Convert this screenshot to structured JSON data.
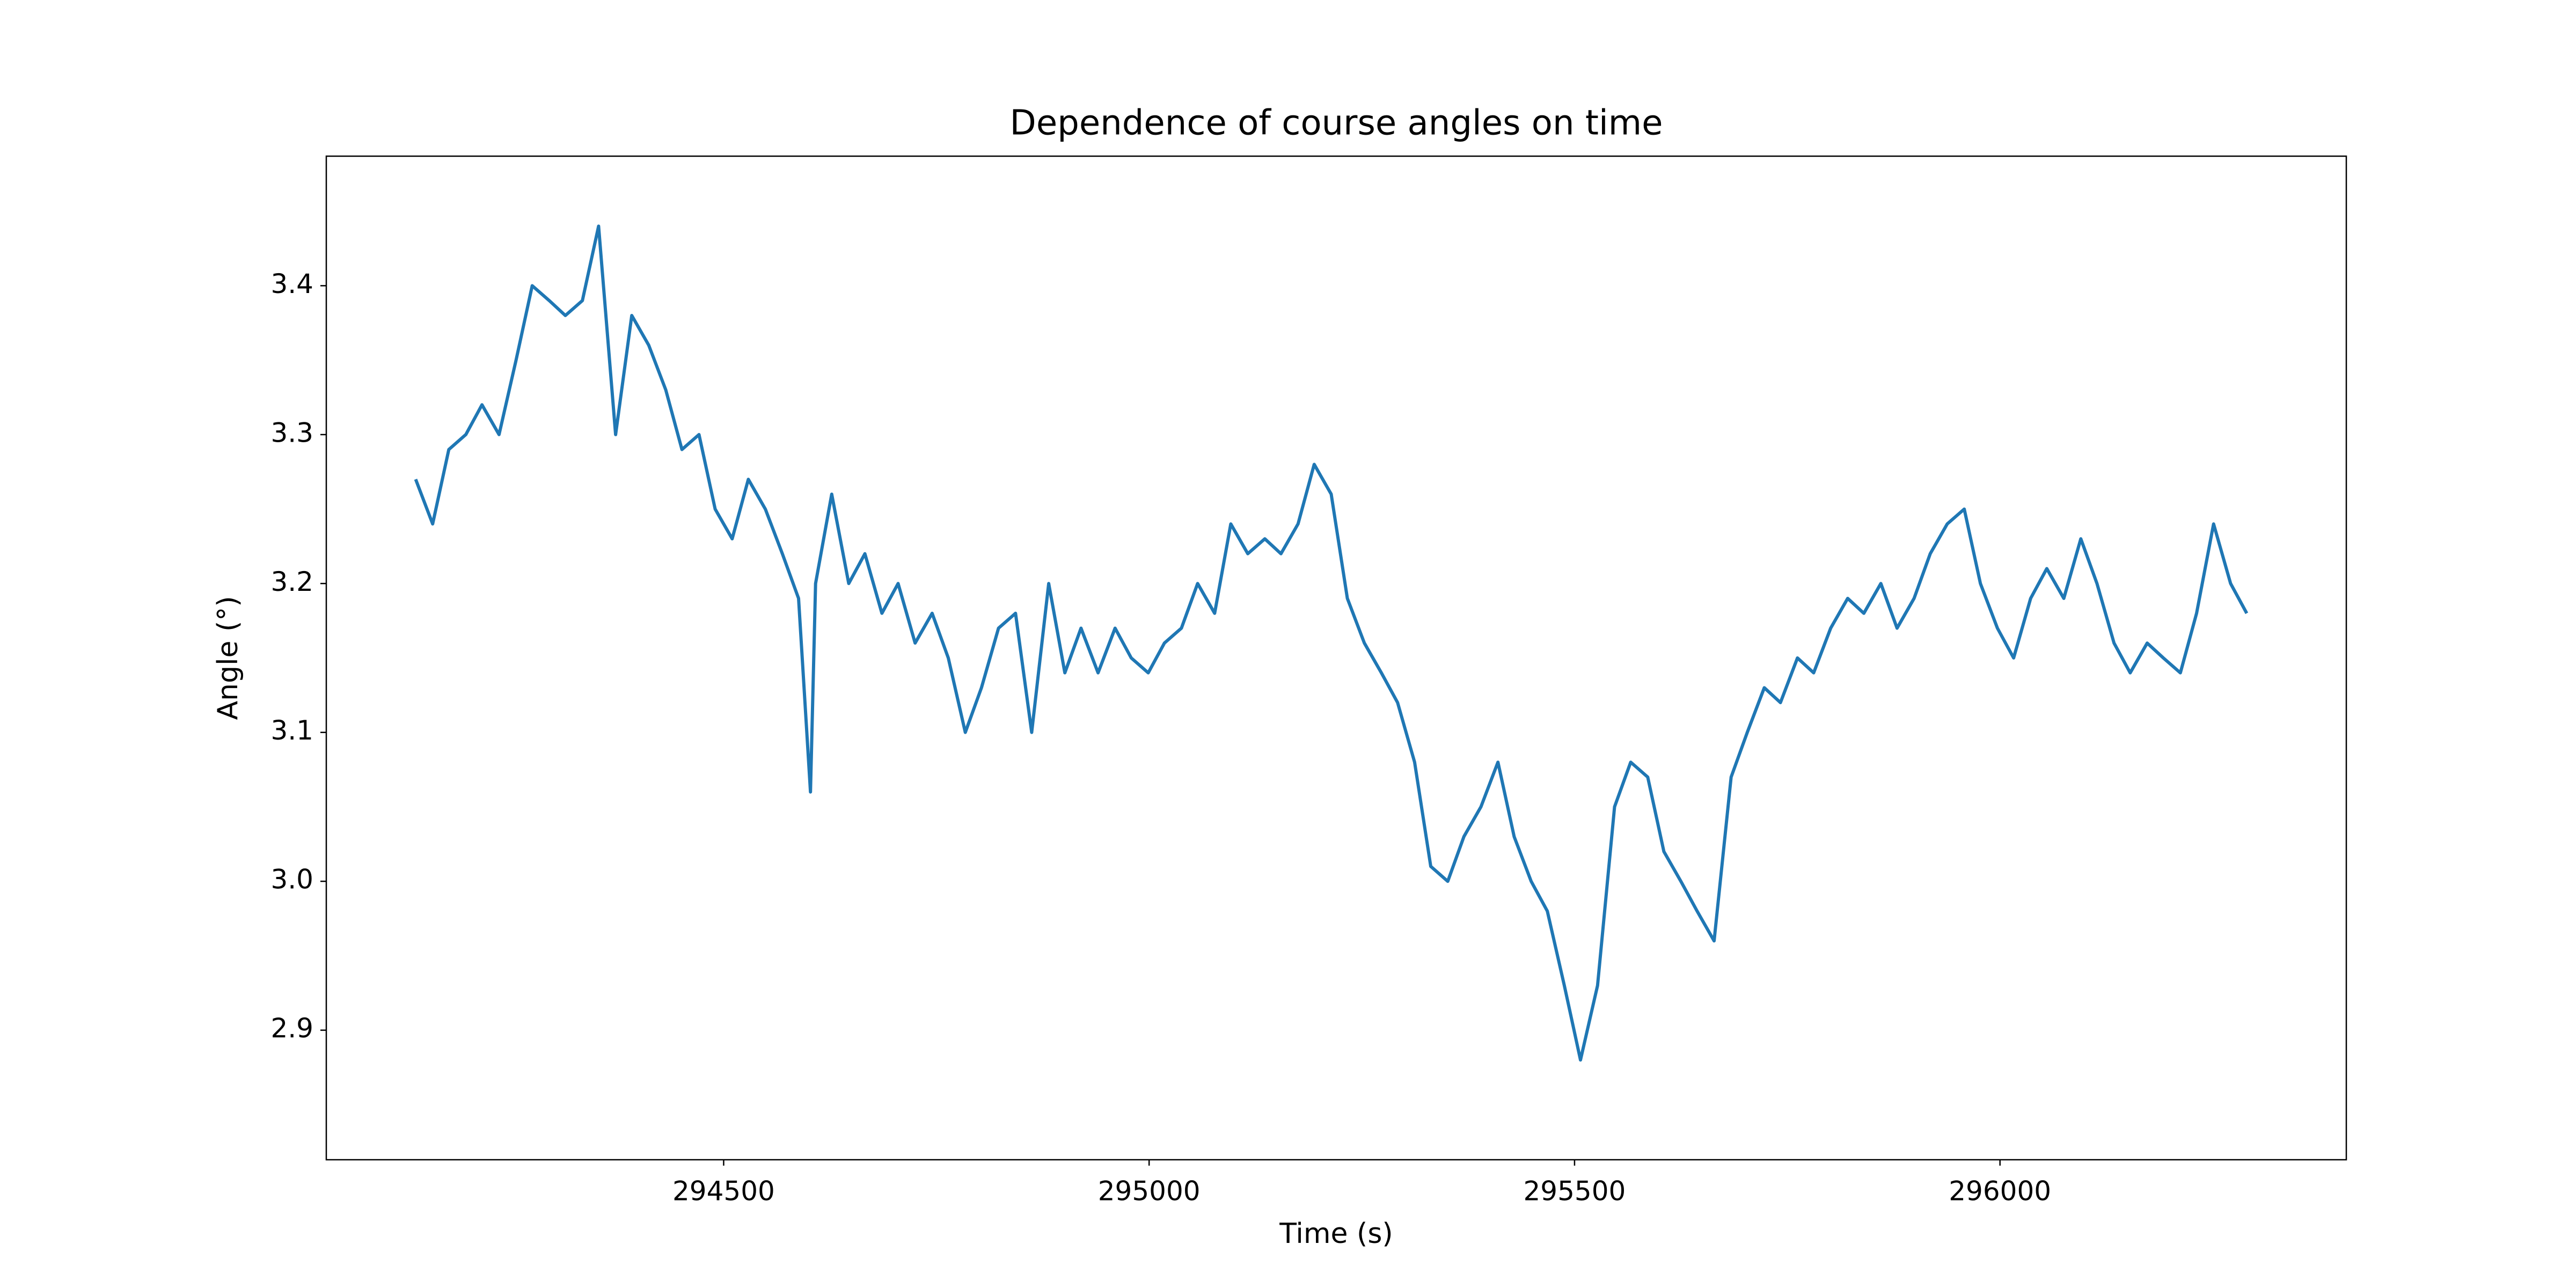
{
  "chart_data": {
    "type": "line",
    "title": "Dependence of course angles on time",
    "x_label": "Time (s)",
    "y_label": "Angle (°)",
    "x": [
      294138,
      294158,
      294177,
      294197,
      294216,
      294236,
      294256,
      294275,
      294295,
      294314,
      294334,
      294353,
      294373,
      294392,
      294412,
      294432,
      294451,
      294471,
      294490,
      294510,
      294529,
      294549,
      294569,
      294588,
      294602,
      294608,
      294627,
      294647,
      294666,
      294686,
      294705,
      294725,
      294745,
      294764,
      294784,
      294803,
      294823,
      294843,
      294862,
      294882,
      294901,
      294920,
      294940,
      294960,
      294979,
      294999,
      295018,
      295038,
      295057,
      295077,
      295096,
      295116,
      295136,
      295155,
      295175,
      295194,
      295214,
      295233,
      295253,
      295273,
      295292,
      295312,
      295331,
      295351,
      295370,
      295390,
      295410,
      295429,
      295449,
      295468,
      295488,
      295507,
      295527,
      295547,
      295566,
      295586,
      295605,
      295625,
      295644,
      295664,
      295684,
      295703,
      295723,
      295742,
      295762,
      295781,
      295801,
      295821,
      295840,
      295860,
      295879,
      295899,
      295918,
      295938,
      295958,
      295977,
      295997,
      296016,
      296036,
      296055,
      296075,
      296095,
      296114,
      296134,
      296153,
      296173,
      296192,
      296212,
      296231,
      296251,
      296271,
      296290
    ],
    "series": [
      {
        "name": "Angle",
        "color": "#1f77b4",
        "values": [
          3.27,
          3.24,
          3.29,
          3.3,
          3.32,
          3.3,
          3.35,
          3.4,
          3.39,
          3.38,
          3.39,
          3.44,
          3.3,
          3.38,
          3.36,
          3.33,
          3.29,
          3.3,
          3.25,
          3.23,
          3.27,
          3.25,
          3.22,
          3.19,
          3.06,
          3.2,
          3.26,
          3.2,
          3.22,
          3.18,
          3.2,
          3.16,
          3.18,
          3.15,
          3.1,
          3.13,
          3.17,
          3.18,
          3.1,
          3.2,
          3.14,
          3.17,
          3.14,
          3.17,
          3.15,
          3.14,
          3.16,
          3.17,
          3.2,
          3.18,
          3.24,
          3.22,
          3.23,
          3.22,
          3.24,
          3.28,
          3.26,
          3.19,
          3.16,
          3.14,
          3.12,
          3.08,
          3.01,
          3.0,
          3.03,
          3.05,
          3.08,
          3.03,
          3.0,
          2.98,
          2.93,
          2.88,
          2.93,
          3.05,
          3.08,
          3.07,
          3.02,
          3.0,
          2.98,
          2.96,
          3.07,
          3.1,
          3.13,
          3.12,
          3.15,
          3.14,
          3.17,
          3.19,
          3.18,
          3.2,
          3.17,
          3.19,
          3.22,
          3.24,
          3.25,
          3.2,
          3.17,
          3.15,
          3.19,
          3.21,
          3.19,
          3.23,
          3.2,
          3.16,
          3.14,
          3.16,
          3.15,
          3.14,
          3.18,
          3.24,
          3.2,
          3.18
        ]
      }
    ],
    "xlim": [
      294033,
      296407
    ],
    "xticks": [
      294500,
      295000,
      295500,
      296000
    ],
    "ylim": [
      2.813,
      3.487
    ],
    "yticks": [
      {
        "value": 2.9,
        "label": "2.9"
      },
      {
        "value": 3.0,
        "label": "3.0"
      },
      {
        "value": 3.1,
        "label": "3.1"
      },
      {
        "value": 3.2,
        "label": "3.2"
      },
      {
        "value": 3.3,
        "label": "3.3"
      },
      {
        "value": 3.4,
        "label": "3.4"
      }
    ],
    "grid": false
  }
}
